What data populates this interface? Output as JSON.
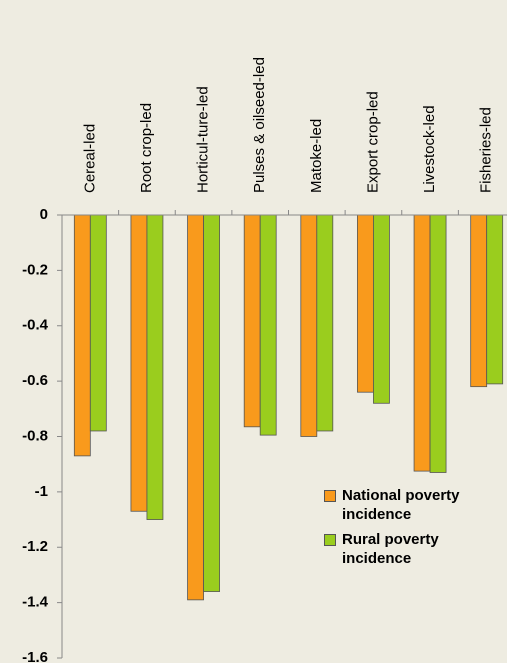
{
  "chart_data": {
    "type": "bar",
    "categories": [
      "Cereal-led",
      "Root crop-led",
      "Horticul-ture-led",
      "Pulses & oilseed-led",
      "Matoke-led",
      "Export crop-led",
      "Livestock-led",
      "Fisheries-led"
    ],
    "series": [
      {
        "name": "National poverty incidence",
        "color": "#f99a1c",
        "values": [
          -0.87,
          -1.07,
          -1.39,
          -0.765,
          -0.8,
          -0.64,
          -0.925,
          -0.62
        ]
      },
      {
        "name": "Rural poverty incidence",
        "color": "#9acd1e",
        "values": [
          -0.78,
          -1.1,
          -1.36,
          -0.795,
          -0.78,
          -0.68,
          -0.93,
          -0.61
        ]
      }
    ],
    "ylim": [
      -1.6,
      0
    ],
    "yticks": [
      0,
      -0.2,
      -0.4,
      -0.6,
      -0.8,
      -1,
      -1.2,
      -1.4,
      -1.6
    ],
    "grid": false,
    "legend": "lower right"
  }
}
